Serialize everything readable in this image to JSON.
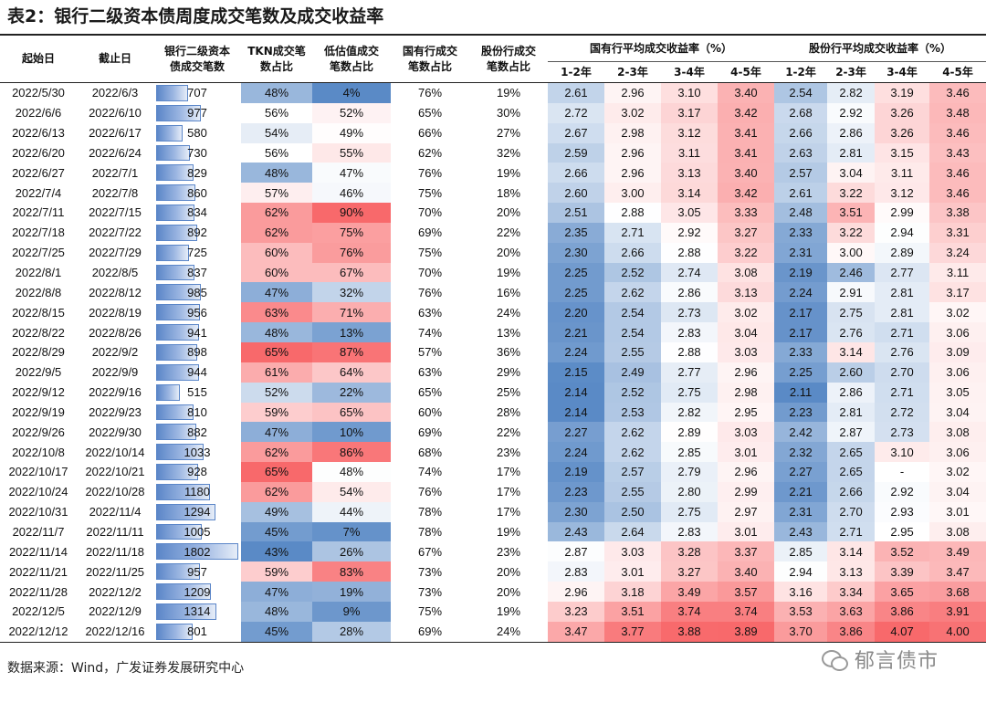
{
  "title": "表2：银行二级资本债周度成交笔数及成交收益率",
  "headers": {
    "start": "起始日",
    "end": "截止日",
    "count": [
      "银行二级资本",
      "债成交笔数"
    ],
    "tkn": [
      "TKN成交笔",
      "数占比"
    ],
    "low_val": [
      "低估值成交",
      "笔数占比"
    ],
    "state_share": [
      "国有行成交",
      "笔数占比"
    ],
    "joint_share": [
      "股份行成交",
      "笔数占比"
    ],
    "state_yield_group": "国有行平均成交收益率（%）",
    "joint_yield_group": "股份行平均成交收益率（%）",
    "tenors": [
      "1-2年",
      "2-3年",
      "3-4年",
      "4-5年"
    ]
  },
  "rows": [
    [
      "2022/5/30",
      "2022/6/3",
      "707",
      "48%",
      "4%",
      "76%",
      "19%",
      "2.61",
      "2.96",
      "3.10",
      "3.40",
      "2.54",
      "2.82",
      "3.19",
      "3.46"
    ],
    [
      "2022/6/6",
      "2022/6/10",
      "977",
      "56%",
      "52%",
      "65%",
      "30%",
      "2.72",
      "3.02",
      "3.17",
      "3.42",
      "2.68",
      "2.92",
      "3.26",
      "3.48"
    ],
    [
      "2022/6/13",
      "2022/6/17",
      "580",
      "54%",
      "49%",
      "66%",
      "27%",
      "2.67",
      "2.98",
      "3.12",
      "3.41",
      "2.66",
      "2.86",
      "3.26",
      "3.46"
    ],
    [
      "2022/6/20",
      "2022/6/24",
      "730",
      "56%",
      "55%",
      "62%",
      "32%",
      "2.59",
      "2.96",
      "3.11",
      "3.41",
      "2.63",
      "2.81",
      "3.15",
      "3.43"
    ],
    [
      "2022/6/27",
      "2022/7/1",
      "829",
      "48%",
      "47%",
      "76%",
      "19%",
      "2.66",
      "2.96",
      "3.13",
      "3.40",
      "2.57",
      "3.04",
      "3.11",
      "3.46"
    ],
    [
      "2022/7/4",
      "2022/7/8",
      "860",
      "57%",
      "46%",
      "75%",
      "18%",
      "2.60",
      "3.00",
      "3.14",
      "3.42",
      "2.61",
      "3.22",
      "3.12",
      "3.46"
    ],
    [
      "2022/7/11",
      "2022/7/15",
      "834",
      "62%",
      "90%",
      "70%",
      "20%",
      "2.51",
      "2.88",
      "3.05",
      "3.33",
      "2.48",
      "3.51",
      "2.99",
      "3.38"
    ],
    [
      "2022/7/18",
      "2022/7/22",
      "892",
      "62%",
      "75%",
      "69%",
      "22%",
      "2.35",
      "2.71",
      "2.92",
      "3.27",
      "2.33",
      "3.22",
      "2.94",
      "3.31"
    ],
    [
      "2022/7/25",
      "2022/7/29",
      "725",
      "60%",
      "76%",
      "75%",
      "20%",
      "2.30",
      "2.66",
      "2.88",
      "3.22",
      "2.31",
      "3.00",
      "2.89",
      "3.24"
    ],
    [
      "2022/8/1",
      "2022/8/5",
      "837",
      "60%",
      "67%",
      "70%",
      "19%",
      "2.25",
      "2.52",
      "2.74",
      "3.08",
      "2.19",
      "2.46",
      "2.77",
      "3.11"
    ],
    [
      "2022/8/8",
      "2022/8/12",
      "985",
      "47%",
      "32%",
      "76%",
      "16%",
      "2.25",
      "2.62",
      "2.86",
      "3.13",
      "2.24",
      "2.91",
      "2.81",
      "3.17"
    ],
    [
      "2022/8/15",
      "2022/8/19",
      "956",
      "63%",
      "71%",
      "63%",
      "24%",
      "2.20",
      "2.54",
      "2.73",
      "3.02",
      "2.17",
      "2.75",
      "2.81",
      "3.02"
    ],
    [
      "2022/8/22",
      "2022/8/26",
      "941",
      "48%",
      "13%",
      "74%",
      "13%",
      "2.21",
      "2.54",
      "2.83",
      "3.04",
      "2.17",
      "2.76",
      "2.71",
      "3.06"
    ],
    [
      "2022/8/29",
      "2022/9/2",
      "898",
      "65%",
      "87%",
      "57%",
      "36%",
      "2.24",
      "2.55",
      "2.88",
      "3.03",
      "2.33",
      "3.14",
      "2.76",
      "3.09"
    ],
    [
      "2022/9/5",
      "2022/9/9",
      "944",
      "61%",
      "64%",
      "63%",
      "29%",
      "2.15",
      "2.49",
      "2.77",
      "2.96",
      "2.25",
      "2.60",
      "2.70",
      "3.06"
    ],
    [
      "2022/9/12",
      "2022/9/16",
      "515",
      "52%",
      "22%",
      "65%",
      "25%",
      "2.14",
      "2.52",
      "2.75",
      "2.98",
      "2.11",
      "2.86",
      "2.71",
      "3.05"
    ],
    [
      "2022/9/19",
      "2022/9/23",
      "810",
      "59%",
      "65%",
      "60%",
      "28%",
      "2.14",
      "2.53",
      "2.82",
      "2.95",
      "2.23",
      "2.81",
      "2.72",
      "3.04"
    ],
    [
      "2022/9/26",
      "2022/9/30",
      "882",
      "47%",
      "10%",
      "69%",
      "22%",
      "2.27",
      "2.62",
      "2.89",
      "3.03",
      "2.42",
      "2.87",
      "2.73",
      "3.08"
    ],
    [
      "2022/10/8",
      "2022/10/14",
      "1033",
      "62%",
      "86%",
      "68%",
      "23%",
      "2.24",
      "2.62",
      "2.85",
      "3.01",
      "2.32",
      "2.65",
      "3.10",
      "3.06"
    ],
    [
      "2022/10/17",
      "2022/10/21",
      "928",
      "65%",
      "48%",
      "74%",
      "17%",
      "2.19",
      "2.57",
      "2.79",
      "2.96",
      "2.27",
      "2.65",
      "-",
      "3.02"
    ],
    [
      "2022/10/24",
      "2022/10/28",
      "1180",
      "62%",
      "54%",
      "76%",
      "17%",
      "2.23",
      "2.55",
      "2.80",
      "2.99",
      "2.21",
      "2.66",
      "2.92",
      "3.04"
    ],
    [
      "2022/10/31",
      "2022/11/4",
      "1294",
      "49%",
      "44%",
      "78%",
      "17%",
      "2.30",
      "2.50",
      "2.75",
      "2.97",
      "2.31",
      "2.70",
      "2.93",
      "3.01"
    ],
    [
      "2022/11/7",
      "2022/11/11",
      "1005",
      "45%",
      "7%",
      "78%",
      "19%",
      "2.43",
      "2.64",
      "2.83",
      "3.01",
      "2.43",
      "2.71",
      "2.95",
      "3.08"
    ],
    [
      "2022/11/14",
      "2022/11/18",
      "1802",
      "43%",
      "26%",
      "67%",
      "23%",
      "2.87",
      "3.03",
      "3.28",
      "3.37",
      "2.85",
      "3.14",
      "3.52",
      "3.49"
    ],
    [
      "2022/11/21",
      "2022/11/25",
      "957",
      "59%",
      "83%",
      "73%",
      "20%",
      "2.83",
      "3.01",
      "3.27",
      "3.40",
      "2.94",
      "3.13",
      "3.39",
      "3.47"
    ],
    [
      "2022/11/28",
      "2022/12/2",
      "1209",
      "47%",
      "19%",
      "73%",
      "20%",
      "2.96",
      "3.18",
      "3.49",
      "3.57",
      "3.16",
      "3.34",
      "3.65",
      "3.68"
    ],
    [
      "2022/12/5",
      "2022/12/9",
      "1314",
      "48%",
      "9%",
      "75%",
      "19%",
      "3.23",
      "3.51",
      "3.74",
      "3.74",
      "3.53",
      "3.63",
      "3.86",
      "3.91"
    ],
    [
      "2022/12/12",
      "2022/12/16",
      "801",
      "45%",
      "28%",
      "69%",
      "24%",
      "3.47",
      "3.77",
      "3.88",
      "3.89",
      "3.70",
      "3.86",
      "4.07",
      "4.00"
    ]
  ],
  "footer": "数据来源：Wind，广发证券发展研究中心",
  "watermark": "郁言债市",
  "colors": {
    "blue": "#5a8ac6",
    "white": "#ffffff",
    "red": "#f8696b"
  }
}
